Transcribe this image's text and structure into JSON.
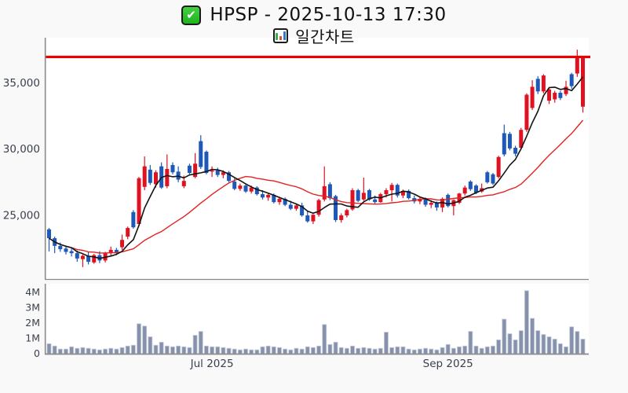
{
  "header": {
    "title": "HPSP - 2025-10-13 17:30",
    "subtitle": "일간차트",
    "check_icon": "green-check-badge",
    "chart_icon": "bar-chart-emoji"
  },
  "chart_data": {
    "type": "candlestick+volume",
    "title": "HPSP - 2025-10-13 17:30",
    "subtitle": "일간차트 (daily chart)",
    "legend_position": "none",
    "grid": false,
    "y_axis": {
      "ticks": [
        {
          "label": "25,000",
          "value": 25000
        },
        {
          "label": "30,000",
          "value": 30000
        },
        {
          "label": "35,000",
          "value": 35000
        }
      ],
      "range": [
        20200,
        38400
      ]
    },
    "volume_axis": {
      "unit": "M",
      "ticks": [
        {
          "label": "0",
          "value": 0
        },
        {
          "label": "1M",
          "value": 1
        },
        {
          "label": "2M",
          "value": 2
        },
        {
          "label": "3M",
          "value": 3
        },
        {
          "label": "4M",
          "value": 4
        }
      ],
      "range": [
        0,
        4.4
      ]
    },
    "x_axis": {
      "ticks": [
        {
          "label": "Jul 2025",
          "index": 29
        },
        {
          "label": "Sep 2025",
          "index": 71
        }
      ]
    },
    "resistance_line": {
      "value": 36950,
      "color": "#ee0000"
    },
    "ma_short": {
      "window": 5,
      "color": "#141414"
    },
    "ma_long": {
      "window": 20,
      "color": "#e32222"
    },
    "colors": {
      "up": "#df1222",
      "down": "#1e58b8",
      "volume_fill": "#8691ab",
      "volume_edge": "#c3c9d8",
      "axis": "#8a8a8a",
      "label": "#3a3f4d",
      "plot_bg": "#ffffff",
      "page_bg": "#f9f9f9"
    },
    "candles_format": [
      "open",
      "high",
      "low",
      "close",
      "volume_millions"
    ],
    "candles": [
      [
        23950,
        24050,
        22280,
        23280,
        0.65
      ],
      [
        23280,
        23400,
        22150,
        22700,
        0.5
      ],
      [
        22700,
        22950,
        22250,
        22450,
        0.3
      ],
      [
        22500,
        22700,
        22050,
        22250,
        0.3
      ],
      [
        22300,
        22500,
        21900,
        22150,
        0.45
      ],
      [
        22150,
        22350,
        21500,
        21750,
        0.35
      ],
      [
        21700,
        22050,
        21100,
        21950,
        0.4
      ],
      [
        21950,
        22250,
        21300,
        21500,
        0.35
      ],
      [
        21450,
        22100,
        21350,
        22000,
        0.3
      ],
      [
        22000,
        22300,
        21400,
        21600,
        0.25
      ],
      [
        21600,
        22250,
        21450,
        22150,
        0.3
      ],
      [
        22150,
        22650,
        21950,
        22400,
        0.35
      ],
      [
        22400,
        22550,
        22000,
        22150,
        0.3
      ],
      [
        22600,
        23550,
        22400,
        23150,
        0.4
      ],
      [
        23400,
        24150,
        23200,
        24050,
        0.5
      ],
      [
        25250,
        25400,
        24000,
        24100,
        0.55
      ],
      [
        24350,
        27900,
        24150,
        27800,
        1.95
      ],
      [
        27150,
        29450,
        26900,
        28700,
        1.8
      ],
      [
        28450,
        28800,
        27300,
        27450,
        1.1
      ],
      [
        27350,
        28400,
        27100,
        28250,
        0.55
      ],
      [
        28700,
        29000,
        27000,
        27100,
        0.75
      ],
      [
        27200,
        29600,
        27050,
        28500,
        0.5
      ],
      [
        28800,
        29000,
        28100,
        28250,
        0.45
      ],
      [
        28300,
        28700,
        27500,
        27700,
        0.5
      ],
      [
        27200,
        28000,
        27050,
        27600,
        0.45
      ],
      [
        28750,
        28900,
        28100,
        28200,
        0.4
      ],
      [
        27900,
        29700,
        27800,
        28900,
        1.2
      ],
      [
        30600,
        31050,
        28500,
        28650,
        1.45
      ],
      [
        29800,
        29900,
        28100,
        28200,
        0.5
      ],
      [
        28300,
        28700,
        27900,
        28400,
        0.45
      ],
      [
        28400,
        28600,
        27900,
        28050,
        0.45
      ],
      [
        28050,
        28400,
        27800,
        28250,
        0.4
      ],
      [
        28250,
        28350,
        27500,
        27600,
        0.35
      ],
      [
        27550,
        27800,
        26900,
        27000,
        0.3
      ],
      [
        27000,
        27400,
        26850,
        27250,
        0.25
      ],
      [
        27250,
        27350,
        26700,
        26800,
        0.3
      ],
      [
        26800,
        27250,
        26650,
        27100,
        0.25
      ],
      [
        27100,
        27200,
        26500,
        26600,
        0.25
      ],
      [
        26600,
        26900,
        26200,
        26350,
        0.45
      ],
      [
        26350,
        26700,
        26100,
        26550,
        0.5
      ],
      [
        26550,
        26650,
        25900,
        26000,
        0.45
      ],
      [
        26000,
        26400,
        25800,
        26250,
        0.4
      ],
      [
        26250,
        26350,
        25700,
        25800,
        0.3
      ],
      [
        25800,
        26100,
        25400,
        25500,
        0.25
      ],
      [
        25500,
        25900,
        25350,
        25750,
        0.35
      ],
      [
        25750,
        25950,
        24900,
        25000,
        0.3
      ],
      [
        25000,
        25300,
        24450,
        24550,
        0.45
      ],
      [
        24550,
        25100,
        24350,
        25050,
        0.4
      ],
      [
        25050,
        26250,
        24900,
        26150,
        0.5
      ],
      [
        26200,
        28700,
        26050,
        27200,
        1.9
      ],
      [
        27350,
        27500,
        26150,
        26300,
        0.6
      ],
      [
        26450,
        26550,
        24500,
        24650,
        0.75
      ],
      [
        24650,
        25150,
        24450,
        25000,
        0.4
      ],
      [
        25000,
        25500,
        24850,
        25400,
        0.35
      ],
      [
        25450,
        27050,
        25350,
        26900,
        0.5
      ],
      [
        26900,
        27000,
        26000,
        26100,
        0.35
      ],
      [
        26200,
        27850,
        26100,
        26700,
        0.4
      ],
      [
        26900,
        27000,
        26100,
        26200,
        0.35
      ],
      [
        26200,
        26500,
        25850,
        26000,
        0.3
      ],
      [
        26000,
        26700,
        25950,
        26600,
        0.35
      ],
      [
        26600,
        27050,
        26350,
        26900,
        1.4
      ],
      [
        26900,
        27450,
        26050,
        27300,
        0.4
      ],
      [
        27300,
        27400,
        26350,
        26500,
        0.45
      ],
      [
        26500,
        26950,
        26300,
        26850,
        0.45
      ],
      [
        26850,
        26950,
        26200,
        26300,
        0.3
      ],
      [
        26300,
        26500,
        25900,
        26050,
        0.25
      ],
      [
        26050,
        26350,
        25850,
        26250,
        0.3
      ],
      [
        26250,
        26350,
        25650,
        25800,
        0.35
      ],
      [
        25800,
        26150,
        25550,
        25950,
        0.3
      ],
      [
        25950,
        26050,
        25350,
        25600,
        0.25
      ],
      [
        25600,
        26350,
        25250,
        26250,
        0.4
      ],
      [
        26550,
        26650,
        25600,
        25700,
        0.6
      ],
      [
        25700,
        26200,
        25000,
        26150,
        0.35
      ],
      [
        25950,
        26700,
        25850,
        26650,
        0.45
      ],
      [
        26650,
        27250,
        26500,
        27100,
        0.5
      ],
      [
        27550,
        27650,
        26850,
        26980,
        1.45
      ],
      [
        27250,
        27350,
        26600,
        26700,
        0.5
      ],
      [
        26800,
        27400,
        26700,
        27050,
        0.35
      ],
      [
        28250,
        28350,
        27400,
        27500,
        0.45
      ],
      [
        28100,
        28200,
        27300,
        27400,
        0.5
      ],
      [
        27900,
        29500,
        27800,
        29400,
        0.9
      ],
      [
        31200,
        31850,
        29450,
        29600,
        2.25
      ],
      [
        31150,
        31300,
        29900,
        30050,
        1.3
      ],
      [
        30100,
        30250,
        29450,
        29650,
        0.9
      ],
      [
        30100,
        31600,
        29950,
        31450,
        1.5
      ],
      [
        31450,
        34200,
        31300,
        34100,
        4.1
      ],
      [
        33100,
        35200,
        32950,
        34700,
        2.3
      ],
      [
        35300,
        35500,
        34150,
        34350,
        1.5
      ],
      [
        34350,
        35650,
        34200,
        35550,
        1.25
      ],
      [
        33650,
        34600,
        33400,
        34500,
        1.1
      ],
      [
        33750,
        34400,
        33500,
        34250,
        0.95
      ],
      [
        34250,
        34400,
        33700,
        33850,
        0.65
      ],
      [
        34150,
        35150,
        34000,
        34700,
        0.45
      ],
      [
        35650,
        35750,
        34550,
        34750,
        1.75
      ],
      [
        35700,
        37500,
        35450,
        36950,
        1.45
      ],
      [
        33200,
        37000,
        32750,
        36950,
        0.95
      ]
    ]
  }
}
